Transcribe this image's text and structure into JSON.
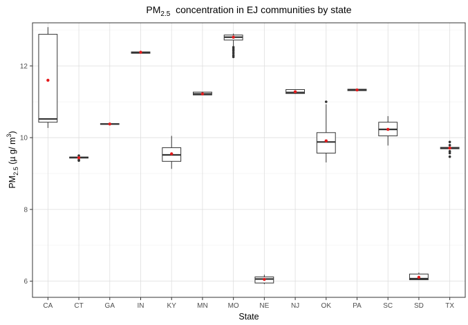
{
  "chart_data": {
    "type": "boxplot",
    "title": "PM",
    "title_sub": "2.5",
    "title_rest": "  concentration in EJ communities by state",
    "xlabel": "State",
    "ylabel_main": "PM",
    "ylabel_sub": "2.5",
    "ylabel_rest": " (µ g/ m",
    "ylabel_sup": "3",
    "ylabel_end": ")",
    "ylim": [
      5.55,
      13.2
    ],
    "yticks": [
      6,
      8,
      10,
      12
    ],
    "grid": true,
    "mean_color": "#e41a1c",
    "categories": [
      "CA",
      "CT",
      "GA",
      "IN",
      "KY",
      "MN",
      "MO",
      "NE",
      "NJ",
      "OK",
      "PA",
      "SC",
      "SD",
      "TX"
    ],
    "boxes": [
      {
        "state": "CA",
        "q1": 10.43,
        "median": 10.52,
        "q3": 12.88,
        "low": 10.27,
        "high": 13.08,
        "mean": 11.6,
        "outliers": []
      },
      {
        "state": "CT",
        "q1": 9.43,
        "median": 9.45,
        "q3": 9.46,
        "low": 9.43,
        "high": 9.46,
        "mean": 9.44,
        "outliers": [
          9.36,
          9.38,
          9.5
        ]
      },
      {
        "state": "GA",
        "q1": 10.37,
        "median": 10.38,
        "q3": 10.39,
        "low": 10.37,
        "high": 10.39,
        "mean": 10.38,
        "outliers": []
      },
      {
        "state": "IN",
        "q1": 12.35,
        "median": 12.37,
        "q3": 12.39,
        "low": 12.35,
        "high": 12.39,
        "mean": 12.38,
        "outliers": []
      },
      {
        "state": "KY",
        "q1": 9.34,
        "median": 9.52,
        "q3": 9.72,
        "low": 9.13,
        "high": 10.05,
        "mean": 9.55,
        "outliers": []
      },
      {
        "state": "MN",
        "q1": 11.19,
        "median": 11.22,
        "q3": 11.27,
        "low": 11.19,
        "high": 11.27,
        "mean": 11.22,
        "outliers": []
      },
      {
        "state": "MO",
        "q1": 12.72,
        "median": 12.8,
        "q3": 12.86,
        "low": 12.55,
        "high": 12.9,
        "mean": 12.8,
        "outliers": [
          12.25,
          12.3,
          12.36,
          12.42,
          12.47,
          12.52
        ]
      },
      {
        "state": "NE",
        "q1": 5.95,
        "median": 6.06,
        "q3": 6.12,
        "low": 5.92,
        "high": 6.18,
        "mean": 6.05,
        "outliers": []
      },
      {
        "state": "NJ",
        "q1": 11.23,
        "median": 11.26,
        "q3": 11.34,
        "low": 11.22,
        "high": 11.35,
        "mean": 11.28,
        "outliers": []
      },
      {
        "state": "OK",
        "q1": 9.57,
        "median": 9.88,
        "q3": 10.14,
        "low": 9.31,
        "high": 10.93,
        "mean": 9.91,
        "outliers": [
          11.0
        ]
      },
      {
        "state": "PA",
        "q1": 11.31,
        "median": 11.33,
        "q3": 11.35,
        "low": 11.31,
        "high": 11.35,
        "mean": 11.33,
        "outliers": []
      },
      {
        "state": "SC",
        "q1": 10.05,
        "median": 10.23,
        "q3": 10.43,
        "low": 9.78,
        "high": 10.6,
        "mean": 10.23,
        "outliers": []
      },
      {
        "state": "SD",
        "q1": 6.04,
        "median": 6.07,
        "q3": 6.2,
        "low": 6.04,
        "high": 6.24,
        "mean": 6.11,
        "outliers": []
      },
      {
        "state": "TX",
        "q1": 9.69,
        "median": 9.71,
        "q3": 9.73,
        "low": 9.69,
        "high": 9.73,
        "mean": 9.71,
        "outliers": [
          9.47,
          9.57,
          9.62,
          9.79,
          9.88
        ]
      }
    ]
  }
}
